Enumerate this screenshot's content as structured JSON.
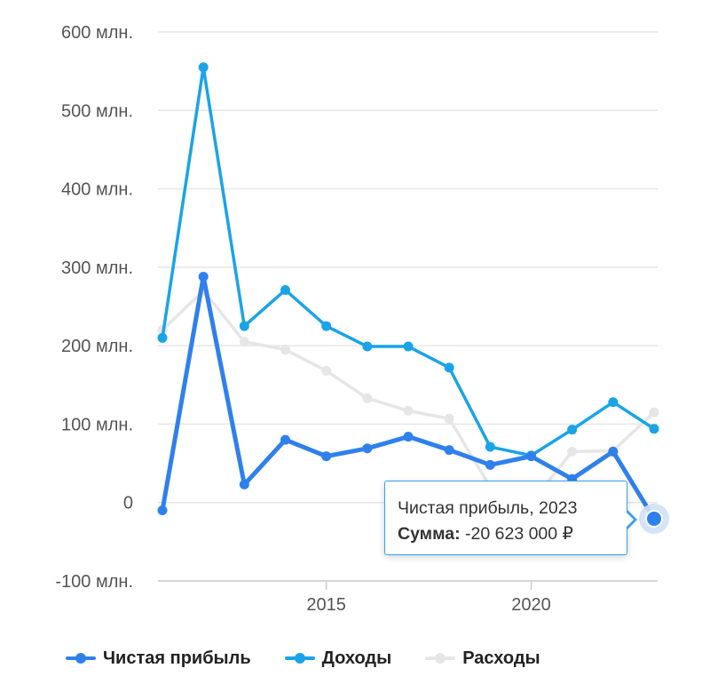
{
  "chart_data": {
    "type": "line",
    "x": [
      2011,
      2012,
      2013,
      2014,
      2015,
      2016,
      2017,
      2018,
      2019,
      2020,
      2021,
      2022,
      2023
    ],
    "y_ticks": [
      {
        "value": 600,
        "label": "600 млн."
      },
      {
        "value": 500,
        "label": "500 млн."
      },
      {
        "value": 400,
        "label": "400 млн."
      },
      {
        "value": 300,
        "label": "300 млн."
      },
      {
        "value": 200,
        "label": "200 млн."
      },
      {
        "value": 100,
        "label": "100 млн."
      },
      {
        "value": 0,
        "label": "0"
      },
      {
        "value": -100,
        "label": "-100 млн."
      }
    ],
    "x_ticks": [
      {
        "value": 2015,
        "label": "2015"
      },
      {
        "value": 2020,
        "label": "2020"
      }
    ],
    "xlim": [
      2011,
      2023
    ],
    "ylim": [
      -100,
      600
    ],
    "grid": true,
    "legend_position": "bottom-left",
    "series": [
      {
        "name": "Расходы",
        "color": "#e6e6e6",
        "values": [
          220,
          270,
          205,
          195,
          168,
          133,
          117,
          107,
          20,
          0,
          65,
          66,
          115
        ]
      },
      {
        "name": "Доходы",
        "color": "#1aa3e8",
        "values": [
          210,
          555,
          225,
          271,
          225,
          199,
          199,
          172,
          71,
          60,
          93,
          128,
          94
        ]
      },
      {
        "name": "Чистая прибыль",
        "color": "#2f80ed",
        "values": [
          -10,
          288,
          23,
          80,
          59,
          69,
          84,
          67,
          48,
          59,
          30,
          65,
          -20.623
        ]
      }
    ]
  },
  "tooltip": {
    "title": "Чистая прибыль, 2023",
    "sum_label": "Сумма:",
    "sum_value": "-20 623 000 ₽"
  },
  "legend": [
    {
      "label": "Чистая прибыль",
      "color": "#2f80ed"
    },
    {
      "label": "Доходы",
      "color": "#1aa3e8"
    },
    {
      "label": "Расходы",
      "color": "#e6e6e6"
    }
  ]
}
